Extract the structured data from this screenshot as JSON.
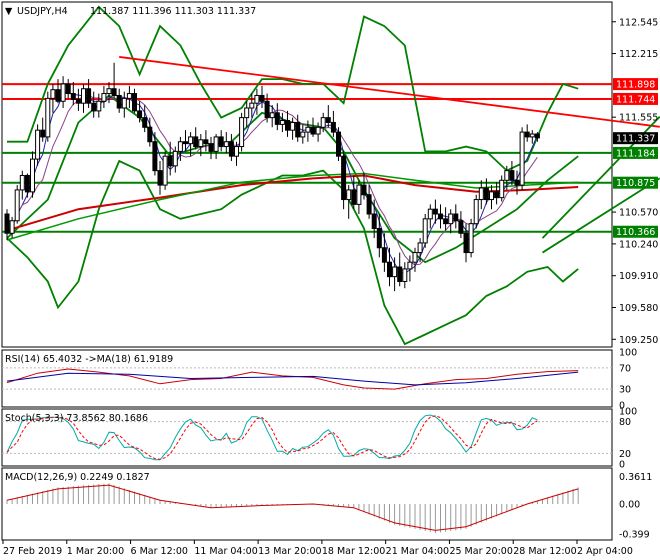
{
  "chart_data": {
    "type": "line",
    "symbol": "USDJPY,H4",
    "colors": {
      "candle": "#000000",
      "bb": "#008000",
      "hline_red": "#ff0000",
      "hline_green": "#008000",
      "ma_red": "#cc0000",
      "ma_green": "#009900",
      "ma_blue": "#2222aa",
      "ma_purple": "#884488",
      "rsi": "#cc0000",
      "rsi_ma": "#0000aa",
      "stoch_main": "#00aaaa",
      "stoch_signal": "#ff0000",
      "macd_hist": "#999999",
      "macd_signal": "#cc0000",
      "price_tag_bg": "#000000"
    },
    "header": {
      "symbol_label": "USDJPY,H4",
      "ohlc": "111.387 111.396 111.303 111.337"
    },
    "price_axis": {
      "range": [
        109.17,
        112.75
      ],
      "ticks": [
        "112.545",
        "112.215",
        "111.555",
        "110.570",
        "110.240",
        "109.910",
        "109.580",
        "109.250"
      ]
    },
    "horizontal_levels": [
      {
        "value": 111.898,
        "label": "111.898",
        "color": "red"
      },
      {
        "value": 111.744,
        "label": "111.744",
        "color": "red"
      },
      {
        "value": 111.184,
        "label": "111.184",
        "color": "green"
      },
      {
        "value": 110.875,
        "label": "110.875",
        "color": "green"
      },
      {
        "value": 110.366,
        "label": "110.366",
        "color": "green"
      }
    ],
    "current_price": {
      "value": 111.337,
      "label": "111.337"
    },
    "trendlines": [
      {
        "from_bar": 22,
        "from": 112.18,
        "to_bar": 128,
        "to": 111.455,
        "color": "red"
      },
      {
        "from_bar": 105,
        "from": 110.3,
        "to_bar": 128,
        "to": 111.56,
        "color": "green"
      },
      {
        "from_bar": 105,
        "from": 110.15,
        "to_bar": 128,
        "to": 110.92,
        "color": "green"
      }
    ],
    "candles": [
      [
        110.55,
        110.6,
        110.28,
        110.35
      ],
      [
        110.35,
        110.52,
        110.3,
        110.48
      ],
      [
        110.48,
        110.85,
        110.45,
        110.8
      ],
      [
        110.8,
        111.0,
        110.7,
        110.95
      ],
      [
        110.95,
        110.97,
        110.72,
        110.78
      ],
      [
        110.78,
        111.2,
        110.72,
        111.12
      ],
      [
        111.12,
        111.48,
        111.05,
        111.42
      ],
      [
        111.42,
        111.55,
        111.3,
        111.35
      ],
      [
        111.35,
        111.82,
        111.3,
        111.75
      ],
      [
        111.75,
        111.9,
        111.6,
        111.84
      ],
      [
        111.84,
        111.95,
        111.7,
        111.72
      ],
      [
        111.72,
        111.98,
        111.65,
        111.9
      ],
      [
        111.9,
        111.95,
        111.75,
        111.8
      ],
      [
        111.8,
        111.92,
        111.68,
        111.74
      ],
      [
        111.74,
        111.85,
        111.62,
        111.7
      ],
      [
        111.7,
        111.9,
        111.6,
        111.85
      ],
      [
        111.85,
        111.95,
        111.65,
        111.7
      ],
      [
        111.7,
        111.82,
        111.55,
        111.62
      ],
      [
        111.62,
        111.8,
        111.55,
        111.72
      ],
      [
        111.72,
        111.88,
        111.65,
        111.8
      ],
      [
        111.8,
        111.92,
        111.7,
        111.85
      ],
      [
        111.85,
        112.12,
        111.75,
        111.78
      ],
      [
        111.78,
        111.85,
        111.6,
        111.65
      ],
      [
        111.65,
        111.82,
        111.55,
        111.75
      ],
      [
        111.75,
        111.88,
        111.65,
        111.8
      ],
      [
        111.8,
        111.85,
        111.6,
        111.62
      ],
      [
        111.62,
        111.72,
        111.5,
        111.55
      ],
      [
        111.55,
        111.68,
        111.4,
        111.45
      ],
      [
        111.45,
        111.55,
        111.25,
        111.3
      ],
      [
        111.3,
        111.4,
        110.95,
        111.0
      ],
      [
        111.0,
        111.1,
        110.75,
        110.85
      ],
      [
        110.85,
        111.2,
        110.8,
        111.15
      ],
      [
        111.15,
        111.3,
        110.95,
        111.05
      ],
      [
        111.05,
        111.25,
        110.98,
        111.2
      ],
      [
        111.2,
        111.35,
        111.1,
        111.3
      ],
      [
        111.3,
        111.42,
        111.2,
        111.28
      ],
      [
        111.28,
        111.4,
        111.15,
        111.35
      ],
      [
        111.35,
        111.45,
        111.22,
        111.25
      ],
      [
        111.25,
        111.38,
        111.15,
        111.32
      ],
      [
        111.32,
        111.42,
        111.2,
        111.28
      ],
      [
        111.28,
        111.35,
        111.12,
        111.2
      ],
      [
        111.2,
        111.38,
        111.12,
        111.35
      ],
      [
        111.35,
        111.42,
        111.2,
        111.25
      ],
      [
        111.25,
        111.4,
        111.18,
        111.3
      ],
      [
        111.3,
        111.38,
        111.1,
        111.15
      ],
      [
        111.15,
        111.3,
        111.05,
        111.25
      ],
      [
        111.25,
        111.6,
        111.2,
        111.55
      ],
      [
        111.55,
        111.72,
        111.45,
        111.65
      ],
      [
        111.65,
        111.8,
        111.55,
        111.7
      ],
      [
        111.7,
        111.85,
        111.58,
        111.78
      ],
      [
        111.78,
        111.88,
        111.65,
        111.72
      ],
      [
        111.72,
        111.8,
        111.5,
        111.55
      ],
      [
        111.55,
        111.68,
        111.45,
        111.6
      ],
      [
        111.6,
        111.7,
        111.42,
        111.48
      ],
      [
        111.48,
        111.6,
        111.4,
        111.52
      ],
      [
        111.52,
        111.62,
        111.35,
        111.42
      ],
      [
        111.42,
        111.55,
        111.32,
        111.5
      ],
      [
        111.5,
        111.58,
        111.3,
        111.35
      ],
      [
        111.35,
        111.48,
        111.28,
        111.4
      ],
      [
        111.4,
        111.52,
        111.3,
        111.45
      ],
      [
        111.45,
        111.55,
        111.35,
        111.38
      ],
      [
        111.38,
        111.5,
        111.3,
        111.45
      ],
      [
        111.45,
        111.6,
        111.4,
        111.55
      ],
      [
        111.55,
        111.68,
        111.45,
        111.5
      ],
      [
        111.5,
        111.62,
        111.35,
        111.4
      ],
      [
        111.4,
        111.45,
        111.1,
        111.15
      ],
      [
        111.15,
        111.2,
        110.6,
        110.7
      ],
      [
        110.7,
        110.85,
        110.5,
        110.8
      ],
      [
        110.8,
        110.95,
        110.6,
        110.65
      ],
      [
        110.65,
        110.9,
        110.55,
        110.85
      ],
      [
        110.85,
        110.98,
        110.7,
        110.75
      ],
      [
        110.75,
        110.85,
        110.5,
        110.55
      ],
      [
        110.55,
        110.7,
        110.3,
        110.4
      ],
      [
        110.4,
        110.55,
        110.1,
        110.2
      ],
      [
        110.2,
        110.35,
        109.95,
        110.05
      ],
      [
        110.05,
        110.2,
        109.8,
        109.9
      ],
      [
        109.9,
        110.1,
        109.75,
        110.0
      ],
      [
        110.0,
        110.15,
        109.8,
        109.85
      ],
      [
        109.85,
        110.05,
        109.78,
        109.98
      ],
      [
        109.98,
        110.12,
        109.85,
        110.05
      ],
      [
        110.05,
        110.2,
        109.95,
        110.15
      ],
      [
        110.15,
        110.3,
        110.05,
        110.25
      ],
      [
        110.25,
        110.55,
        110.2,
        110.5
      ],
      [
        110.5,
        110.65,
        110.4,
        110.6
      ],
      [
        110.6,
        110.7,
        110.45,
        110.55
      ],
      [
        110.55,
        110.65,
        110.4,
        110.5
      ],
      [
        110.5,
        110.62,
        110.38,
        110.45
      ],
      [
        110.45,
        110.6,
        110.35,
        110.55
      ],
      [
        110.55,
        110.65,
        110.4,
        110.48
      ],
      [
        110.48,
        110.58,
        110.3,
        110.35
      ],
      [
        110.35,
        110.45,
        110.05,
        110.15
      ],
      [
        110.15,
        110.5,
        110.1,
        110.45
      ],
      [
        110.45,
        110.75,
        110.4,
        110.7
      ],
      [
        110.7,
        110.9,
        110.6,
        110.82
      ],
      [
        110.82,
        110.92,
        110.65,
        110.7
      ],
      [
        110.7,
        110.85,
        110.6,
        110.78
      ],
      [
        110.78,
        110.88,
        110.65,
        110.72
      ],
      [
        110.72,
        110.95,
        110.68,
        110.9
      ],
      [
        110.9,
        111.05,
        110.8,
        111.0
      ],
      [
        111.0,
        111.1,
        110.85,
        110.9
      ],
      [
        110.9,
        111.0,
        110.75,
        110.85
      ],
      [
        110.85,
        111.45,
        110.8,
        111.4
      ],
      [
        111.4,
        111.48,
        111.3,
        111.35
      ],
      [
        111.35,
        111.42,
        111.28,
        111.38
      ],
      [
        111.38,
        111.4,
        111.3,
        111.34
      ]
    ],
    "bands": {
      "upper": [
        [
          0,
          111.3
        ],
        [
          4,
          111.3
        ],
        [
          8,
          111.9
        ],
        [
          12,
          112.3
        ],
        [
          18,
          112.7
        ],
        [
          22,
          112.5
        ],
        [
          26,
          112.0
        ],
        [
          30,
          112.5
        ],
        [
          34,
          112.3
        ],
        [
          38,
          111.9
        ],
        [
          42,
          111.55
        ],
        [
          46,
          111.65
        ],
        [
          50,
          111.95
        ],
        [
          54,
          111.95
        ],
        [
          58,
          111.9
        ],
        [
          62,
          111.9
        ],
        [
          66,
          111.7
        ],
        [
          70,
          112.6
        ],
        [
          74,
          112.5
        ],
        [
          78,
          112.3
        ],
        [
          82,
          111.2
        ],
        [
          86,
          111.2
        ],
        [
          90,
          111.25
        ],
        [
          94,
          111.2
        ],
        [
          98,
          111.0
        ],
        [
          102,
          111.1
        ],
        [
          106,
          111.6
        ],
        [
          109,
          111.9
        ],
        [
          112,
          111.85
        ]
      ],
      "lower": [
        [
          0,
          110.3
        ],
        [
          4,
          110.1
        ],
        [
          8,
          109.85
        ],
        [
          10,
          109.58
        ],
        [
          14,
          109.85
        ],
        [
          18,
          110.6
        ],
        [
          22,
          111.1
        ],
        [
          26,
          111.0
        ],
        [
          30,
          110.6
        ],
        [
          34,
          110.5
        ],
        [
          38,
          110.55
        ],
        [
          42,
          110.6
        ],
        [
          46,
          110.75
        ],
        [
          50,
          110.85
        ],
        [
          54,
          110.95
        ],
        [
          58,
          110.95
        ],
        [
          62,
          111.0
        ],
        [
          66,
          110.8
        ],
        [
          70,
          110.4
        ],
        [
          74,
          109.6
        ],
        [
          78,
          109.2
        ],
        [
          82,
          109.3
        ],
        [
          86,
          109.4
        ],
        [
          90,
          109.5
        ],
        [
          94,
          109.7
        ],
        [
          98,
          109.8
        ],
        [
          102,
          109.95
        ],
        [
          106,
          110.0
        ],
        [
          109,
          109.85
        ],
        [
          112,
          109.98
        ]
      ],
      "middle": [
        [
          0,
          110.3
        ],
        [
          8,
          110.7
        ],
        [
          14,
          111.5
        ],
        [
          20,
          111.78
        ],
        [
          26,
          111.55
        ],
        [
          32,
          111.15
        ],
        [
          38,
          111.25
        ],
        [
          44,
          111.3
        ],
        [
          50,
          111.6
        ],
        [
          56,
          111.5
        ],
        [
          62,
          111.45
        ],
        [
          66,
          111.2
        ],
        [
          70,
          110.8
        ],
        [
          76,
          110.3
        ],
        [
          82,
          110.05
        ],
        [
          88,
          110.2
        ],
        [
          94,
          110.4
        ],
        [
          100,
          110.6
        ],
        [
          106,
          110.9
        ],
        [
          112,
          111.15
        ]
      ]
    },
    "ma_slow": [
      [
        0,
        110.38
      ],
      [
        14,
        110.6
      ],
      [
        30,
        110.72
      ],
      [
        46,
        110.85
      ],
      [
        60,
        110.92
      ],
      [
        70,
        110.95
      ],
      [
        80,
        110.85
      ],
      [
        92,
        110.78
      ],
      [
        102,
        110.8
      ],
      [
        112,
        110.83
      ]
    ],
    "ma_mid": [
      [
        0,
        110.28
      ],
      [
        14,
        110.5
      ],
      [
        30,
        110.7
      ],
      [
        46,
        110.88
      ],
      [
        60,
        110.95
      ],
      [
        70,
        110.97
      ],
      [
        80,
        110.9
      ],
      [
        92,
        110.82
      ],
      [
        102,
        110.85
      ],
      [
        112,
        110.88
      ]
    ],
    "rsi": {
      "label": "RSI(14) 65.4032   ->MA(18) 61.9189",
      "ticks": [
        "100",
        "70",
        "30",
        "0"
      ],
      "rsi_values": [
        [
          0,
          42
        ],
        [
          6,
          60
        ],
        [
          12,
          68
        ],
        [
          18,
          62
        ],
        [
          24,
          55
        ],
        [
          30,
          40
        ],
        [
          36,
          48
        ],
        [
          42,
          50
        ],
        [
          48,
          62
        ],
        [
          54,
          55
        ],
        [
          60,
          52
        ],
        [
          66,
          38
        ],
        [
          70,
          32
        ],
        [
          76,
          30
        ],
        [
          82,
          40
        ],
        [
          88,
          48
        ],
        [
          94,
          50
        ],
        [
          100,
          58
        ],
        [
          106,
          63
        ],
        [
          112,
          65
        ]
      ],
      "ma_values": [
        [
          0,
          45
        ],
        [
          12,
          60
        ],
        [
          24,
          58
        ],
        [
          36,
          50
        ],
        [
          48,
          52
        ],
        [
          60,
          54
        ],
        [
          70,
          45
        ],
        [
          80,
          38
        ],
        [
          90,
          42
        ],
        [
          100,
          50
        ],
        [
          112,
          62
        ]
      ]
    },
    "stoch": {
      "label": "Stoch(5,3,3) 73.8562 80.1686",
      "ticks": [
        "100",
        "80",
        "20",
        "0"
      ]
    },
    "macd": {
      "label": "MACD(12,26,9) 0.2249 0.1827",
      "ticks": [
        "0.3611",
        "0.00",
        "-0.399"
      ],
      "signal": [
        [
          0,
          0.05
        ],
        [
          10,
          0.2
        ],
        [
          20,
          0.25
        ],
        [
          30,
          0.05
        ],
        [
          40,
          -0.05
        ],
        [
          50,
          -0.02
        ],
        [
          60,
          0.0
        ],
        [
          68,
          -0.05
        ],
        [
          76,
          -0.25
        ],
        [
          84,
          -0.35
        ],
        [
          90,
          -0.3
        ],
        [
          96,
          -0.15
        ],
        [
          102,
          0.0
        ],
        [
          108,
          0.12
        ],
        [
          112,
          0.2
        ]
      ]
    },
    "time_axis": {
      "labels": [
        "27 Feb 2019",
        "1 Mar 20:00",
        "6 Mar 12:00",
        "11 Mar 04:00",
        "13 Mar 20:00",
        "18 Mar 12:00",
        "21 Mar 04:00",
        "25 Mar 20:00",
        "28 Mar 12:00",
        "2 Apr 04:00"
      ]
    }
  }
}
